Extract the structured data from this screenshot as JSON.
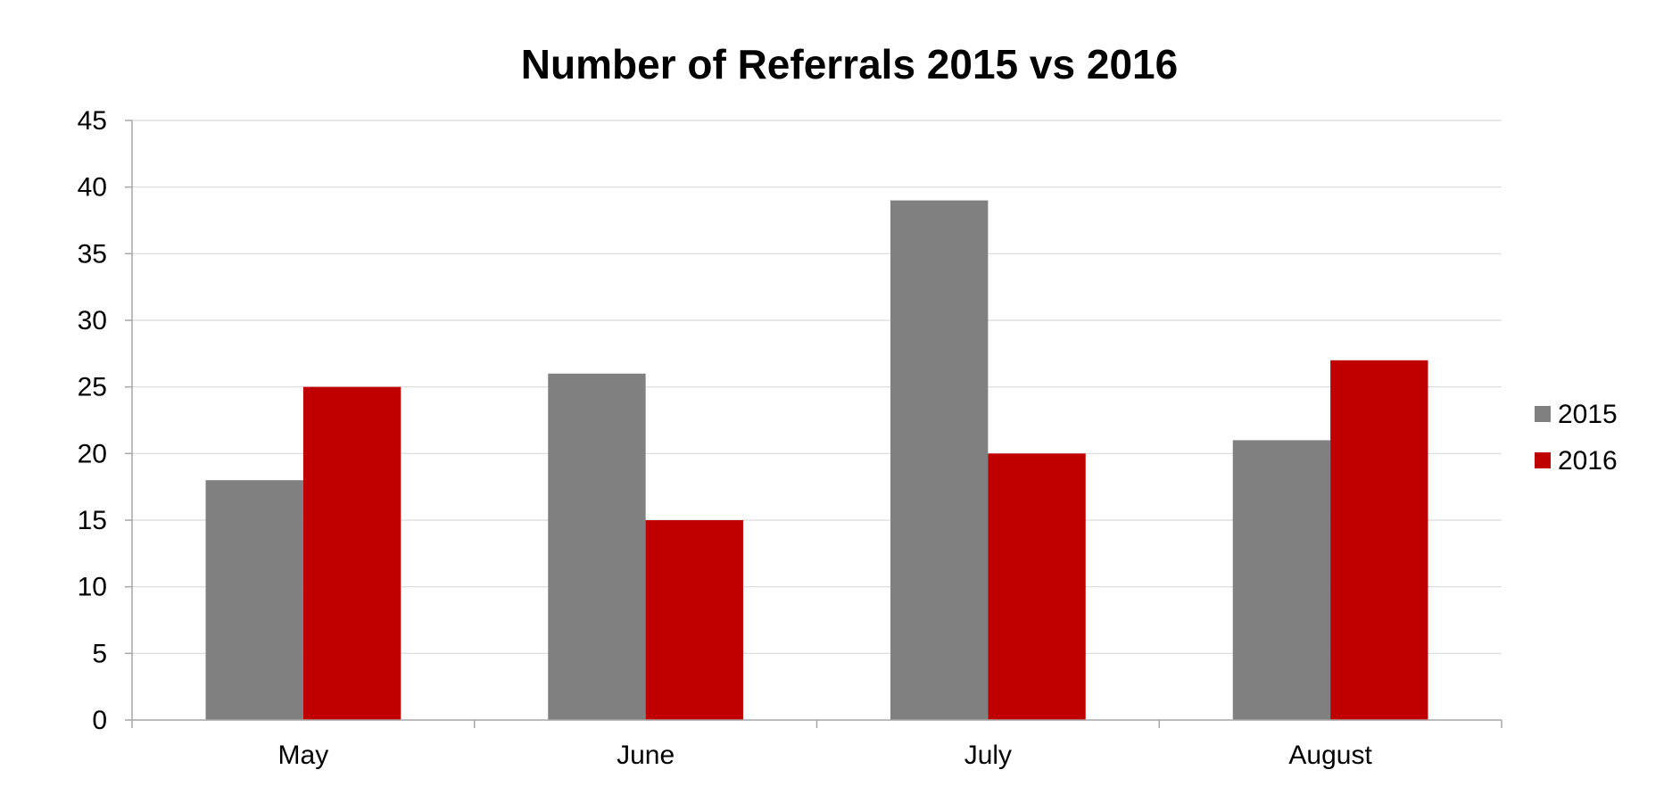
{
  "chart_data": {
    "type": "bar",
    "title": "Number of Referrals 2015 vs 2016",
    "categories": [
      "May",
      "June",
      "July",
      "August"
    ],
    "series": [
      {
        "name": "2015",
        "values": [
          18,
          26,
          39,
          21
        ],
        "color": "#808080"
      },
      {
        "name": "2016",
        "values": [
          25,
          15,
          20,
          27
        ],
        "color": "#C00000"
      }
    ],
    "ylim": [
      0,
      45
    ],
    "yticks": [
      0,
      5,
      10,
      15,
      20,
      25,
      30,
      35,
      40,
      45
    ],
    "xlabel": "",
    "ylabel": "",
    "grid": true,
    "legend_position": "right",
    "colors": {
      "gridline": "#d9d9d9",
      "axis": "#a6a6a6",
      "text": "#000000"
    }
  }
}
